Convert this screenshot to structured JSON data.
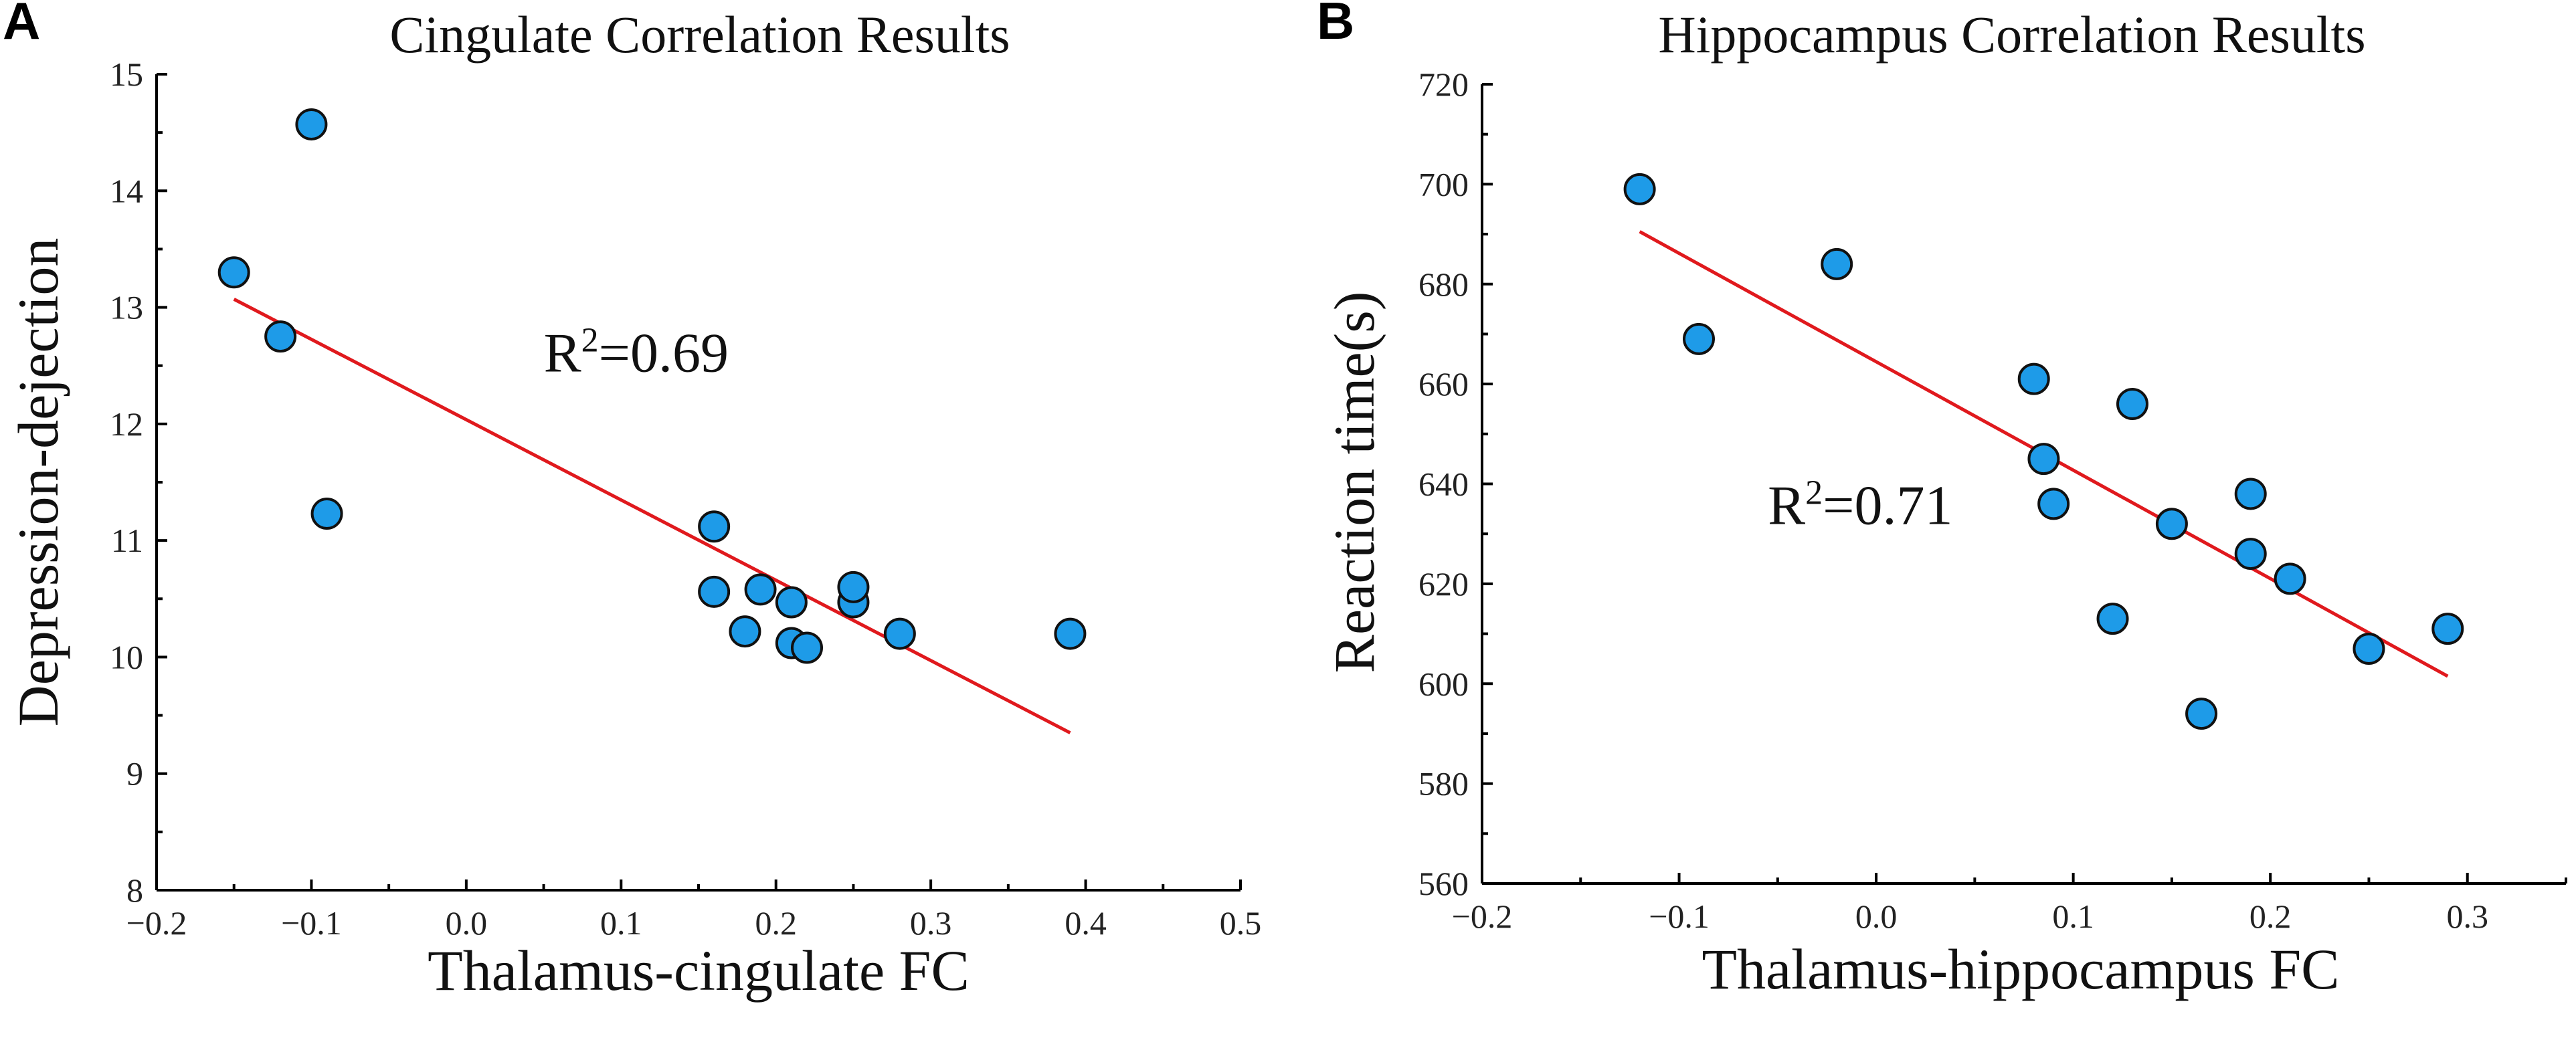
{
  "chart_data": [
    {
      "type": "scatter",
      "panel_label": "A",
      "title": "Cingulate Correlation Results",
      "xlabel": "Thalamus-cingulate FC",
      "ylabel": "Depression-dejection",
      "xlim": [
        -0.2,
        0.5
      ],
      "ylim": [
        8,
        15
      ],
      "xticks": [
        -0.2,
        -0.1,
        0.0,
        0.1,
        0.2,
        0.3,
        0.4,
        0.5
      ],
      "xtick_labels": [
        "−0.2",
        "−0.1",
        "0.0",
        "0.1",
        "0.2",
        "0.3",
        "0.4",
        "0.5"
      ],
      "yticks": [
        8,
        9,
        10,
        11,
        12,
        13,
        14,
        15
      ],
      "ytick_labels": [
        "8",
        "9",
        "10",
        "11",
        "12",
        "13",
        "14",
        "15"
      ],
      "points": [
        {
          "x": -0.15,
          "y": 13.3
        },
        {
          "x": -0.1,
          "y": 14.57
        },
        {
          "x": -0.12,
          "y": 12.75
        },
        {
          "x": -0.09,
          "y": 11.23
        },
        {
          "x": 0.16,
          "y": 11.12
        },
        {
          "x": 0.16,
          "y": 10.56
        },
        {
          "x": 0.19,
          "y": 10.58
        },
        {
          "x": 0.21,
          "y": 10.47
        },
        {
          "x": 0.18,
          "y": 10.22
        },
        {
          "x": 0.21,
          "y": 10.12
        },
        {
          "x": 0.22,
          "y": 10.08
        },
        {
          "x": 0.25,
          "y": 10.47
        },
        {
          "x": 0.25,
          "y": 10.6
        },
        {
          "x": 0.28,
          "y": 10.2
        },
        {
          "x": 0.39,
          "y": 10.2
        }
      ],
      "fit_line": {
        "x": [
          -0.15,
          0.39
        ],
        "y": [
          13.07,
          9.35
        ]
      },
      "annotation": {
        "text": "R",
        "superscript": "2",
        "rest": "=0.69",
        "x": 0.05,
        "y": 12.45
      }
    },
    {
      "type": "scatter",
      "panel_label": "B",
      "title": "Hippocampus Correlation Results",
      "xlabel": "Thalamus-hippocampus FC",
      "ylabel": "Reaction time(s)",
      "xlim": [
        -0.2,
        0.35
      ],
      "ylim": [
        560,
        720
      ],
      "xticks": [
        -0.2,
        -0.1,
        0.0,
        0.1,
        0.2,
        0.3
      ],
      "xtick_labels": [
        "−0.2",
        "−0.1",
        "0.0",
        "0.1",
        "0.2",
        "0.3"
      ],
      "yticks": [
        560,
        580,
        600,
        620,
        640,
        660,
        680,
        700,
        720
      ],
      "ytick_labels": [
        "560",
        "580",
        "600",
        "620",
        "640",
        "660",
        "680",
        "700",
        "720"
      ],
      "points": [
        {
          "x": -0.12,
          "y": 699
        },
        {
          "x": -0.09,
          "y": 669
        },
        {
          "x": -0.02,
          "y": 684
        },
        {
          "x": 0.08,
          "y": 661
        },
        {
          "x": 0.13,
          "y": 656
        },
        {
          "x": 0.085,
          "y": 645
        },
        {
          "x": 0.09,
          "y": 636
        },
        {
          "x": 0.15,
          "y": 632
        },
        {
          "x": 0.19,
          "y": 638
        },
        {
          "x": 0.19,
          "y": 626
        },
        {
          "x": 0.21,
          "y": 621
        },
        {
          "x": 0.12,
          "y": 613
        },
        {
          "x": 0.165,
          "y": 594
        },
        {
          "x": 0.25,
          "y": 607
        },
        {
          "x": 0.29,
          "y": 611
        }
      ],
      "fit_line": {
        "x": [
          -0.12,
          0.29
        ],
        "y": [
          690.5,
          601.5
        ]
      },
      "annotation": {
        "text": "R",
        "superscript": "2",
        "rest": "=0.71",
        "x": -0.055,
        "y": 632
      }
    }
  ],
  "colors": {
    "point_fill": "#1E9BE8",
    "fit_line": "#E0191D"
  }
}
